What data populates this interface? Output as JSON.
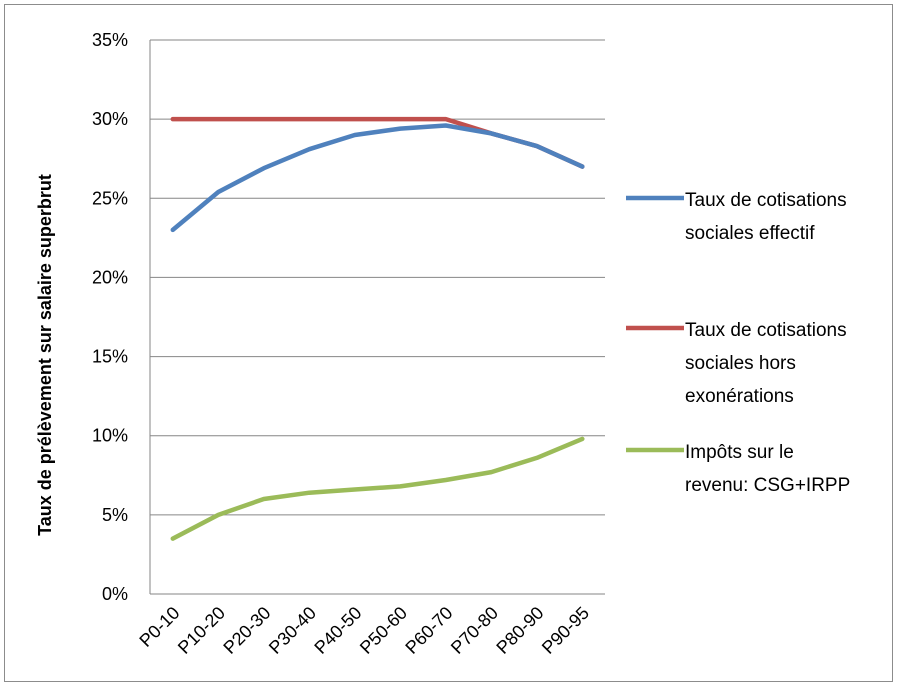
{
  "chart_data": {
    "type": "line",
    "title": "",
    "xlabel": "",
    "ylabel": "Taux de prélèvement sur salaire superbrut",
    "ylim": [
      0,
      0.35
    ],
    "yticks": [
      0,
      0.05,
      0.1,
      0.15,
      0.2,
      0.25,
      0.3,
      0.35
    ],
    "ytick_labels": [
      "0%",
      "5%",
      "10%",
      "15%",
      "20%",
      "25%",
      "30%",
      "35%"
    ],
    "grid": "horizontal",
    "legend_position": "right",
    "categories": [
      "P0-10",
      "P10-20",
      "P20-30",
      "P30-40",
      "P40-50",
      "P50-60",
      "P60-70",
      "P70-80",
      "P80-90",
      "P90-95"
    ],
    "series": [
      {
        "name": "Taux de cotisations sociales effectif",
        "legend_lines": [
          "Taux de cotisations",
          "sociales effectif"
        ],
        "color": "#4f81bd",
        "values": [
          0.23,
          0.254,
          0.269,
          0.281,
          0.29,
          0.294,
          0.296,
          0.291,
          0.283,
          0.27
        ]
      },
      {
        "name": "Taux de cotisations sociales hors exonérations",
        "legend_lines": [
          "Taux de cotisations",
          "sociales hors",
          "exonérations"
        ],
        "color": "#c0504d",
        "values": [
          0.3,
          0.3,
          0.3,
          0.3,
          0.3,
          0.3,
          0.3,
          0.291,
          0.283,
          0.27
        ]
      },
      {
        "name": "Impôts sur le revenu: CSG+IRPP",
        "legend_lines": [
          "Impôts sur le",
          "revenu: CSG+IRPP"
        ],
        "color": "#9bbb59",
        "values": [
          0.035,
          0.05,
          0.06,
          0.064,
          0.066,
          0.068,
          0.072,
          0.077,
          0.086,
          0.098
        ]
      }
    ]
  }
}
